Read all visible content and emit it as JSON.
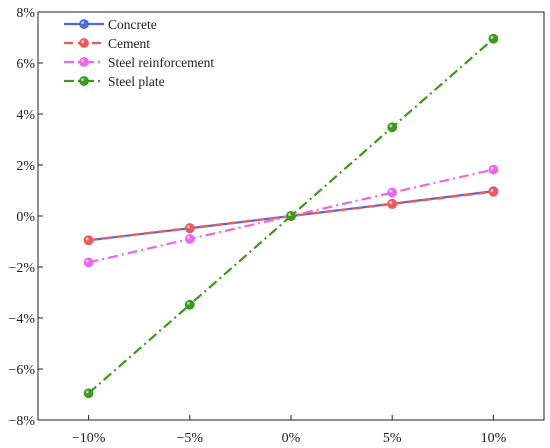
{
  "chart_data": {
    "type": "line",
    "title": "",
    "xlabel": "",
    "ylabel": "",
    "x": [
      -10,
      -5,
      0,
      5,
      10
    ],
    "x_tick_labels": [
      "−10%",
      "−5%",
      "0%",
      "5%",
      "10%"
    ],
    "xlim": [
      -12.5,
      12.5
    ],
    "y_ticks": [
      -8,
      -6,
      -4,
      -2,
      0,
      2,
      4,
      6,
      8
    ],
    "y_tick_labels": [
      "−8%",
      "−6%",
      "−4%",
      "−2%",
      "0%",
      "2%",
      "4%",
      "6%",
      "8%"
    ],
    "ylim": [
      -8,
      8
    ],
    "grid": false,
    "legend_position": "top-left",
    "series": [
      {
        "name": "Concrete",
        "values": [
          -0.95,
          -0.48,
          0,
          0.48,
          0.97
        ],
        "color": "#4a6ad8",
        "dash": "solid"
      },
      {
        "name": "Cement",
        "values": [
          -0.95,
          -0.47,
          0,
          0.47,
          0.95
        ],
        "color": "#f05a5a",
        "dash": "dash"
      },
      {
        "name": "Steel reinforcement",
        "values": [
          -1.82,
          -0.9,
          0,
          0.92,
          1.82
        ],
        "color": "#ee66ee",
        "dash": "dashdot"
      },
      {
        "name": "Steel plate",
        "values": [
          -6.95,
          -3.48,
          0,
          3.48,
          6.95
        ],
        "color": "#3a9a1a",
        "dash": "dashdot"
      }
    ]
  }
}
